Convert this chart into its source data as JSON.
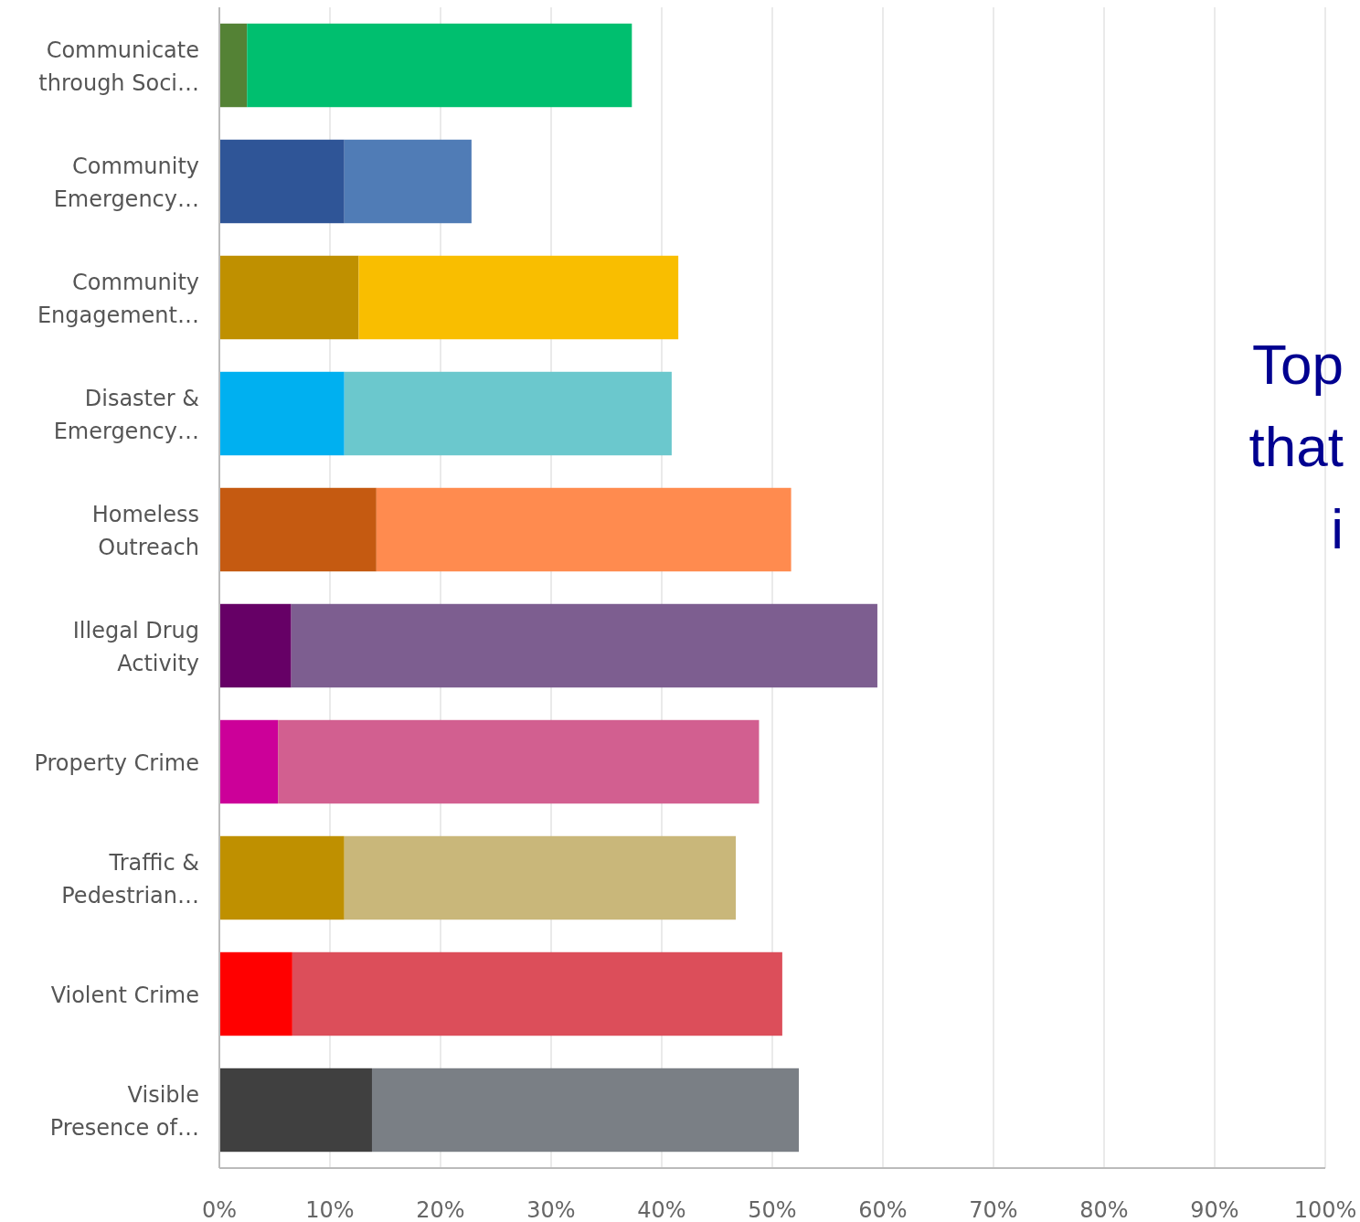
{
  "chart_data": {
    "type": "bar",
    "orientation": "horizontal",
    "stacked": true,
    "categories": [
      "Communicate through Soci…",
      "Community Emergency…",
      "Community Engagement…",
      "Disaster & Emergency…",
      "Homeless Outreach",
      "Illegal Drug Activity",
      "Property Crime",
      "Traffic & Pedestrian…",
      "Violent Crime",
      "Visible Presence of…"
    ],
    "series": [
      {
        "colors": [
          "#548235",
          "#2f5597",
          "#bf9000",
          "#00b0f0",
          "#c55a11",
          "#660066",
          "#cc0099",
          "#bf9000",
          "#ff0000",
          "#404040"
        ],
        "values": [
          2.5,
          11.3,
          12.6,
          11.3,
          14.2,
          6.5,
          5.3,
          11.3,
          6.6,
          13.8
        ]
      },
      {
        "colors": [
          "#00bf6f",
          "#507cb6",
          "#f9be00",
          "#6bc8cd",
          "#ff8b4f",
          "#7d5e90",
          "#d25f90",
          "#c9b77a",
          "#dc4e5a",
          "#7a7f85"
        ],
        "values": [
          34.8,
          11.5,
          28.9,
          29.6,
          37.5,
          53.0,
          43.5,
          35.4,
          44.3,
          38.6
        ]
      }
    ],
    "xlim": [
      0,
      100
    ],
    "xticks": [
      {
        "value": 0,
        "label": "0%"
      },
      {
        "value": 10,
        "label": "10%"
      },
      {
        "value": 20,
        "label": "20%"
      },
      {
        "value": 30,
        "label": "30%"
      },
      {
        "value": 40,
        "label": "40%"
      },
      {
        "value": 50,
        "label": "50%"
      },
      {
        "value": 60,
        "label": "60%"
      },
      {
        "value": 70,
        "label": "70%"
      },
      {
        "value": 80,
        "label": "80%"
      },
      {
        "value": 90,
        "label": "90%"
      },
      {
        "value": 100,
        "label": "100%"
      }
    ],
    "grid": "x",
    "annotations": [
      "Top",
      "that",
      "i"
    ]
  }
}
